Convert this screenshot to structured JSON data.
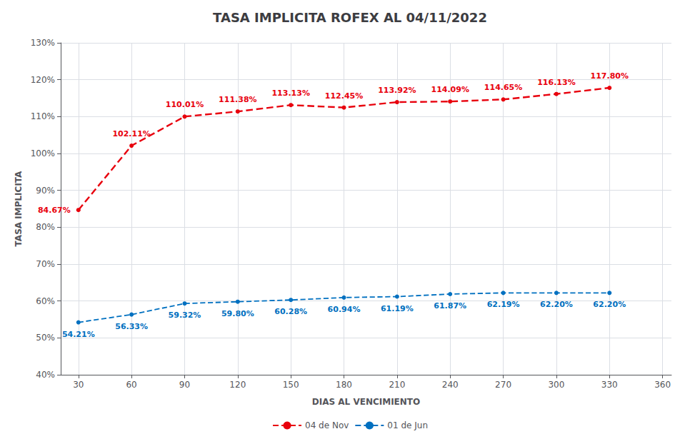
{
  "chart_data": {
    "type": "line",
    "title": "TASA IMPLICITA ROFEX AL 04/11/2022",
    "xlabel": "DIAS AL VENCIMIENTO",
    "ylabel": "TASA IMPLICITA",
    "x": [
      30,
      60,
      90,
      120,
      150,
      180,
      210,
      240,
      270,
      300,
      330
    ],
    "series": [
      {
        "name": "04 de Nov",
        "color": "#e8000d",
        "marker": "circle",
        "line_style": "dashed",
        "values": [
          84.67,
          102.11,
          110.01,
          111.38,
          113.13,
          112.45,
          113.92,
          114.09,
          114.65,
          116.13,
          117.8
        ],
        "value_labels": [
          "84.67%",
          "102.11%",
          "110.01%",
          "111.38%",
          "113.13%",
          "112.45%",
          "113.92%",
          "114.09%",
          "114.65%",
          "116.13%",
          "117.80%"
        ]
      },
      {
        "name": "01 de Jun",
        "color": "#0070c0",
        "marker": "circle",
        "line_style": "dashed",
        "values": [
          54.21,
          56.33,
          59.32,
          59.8,
          60.28,
          60.94,
          61.19,
          61.87,
          62.19,
          62.2,
          62.2
        ],
        "value_labels": [
          "54.21%",
          "56.33%",
          "59.32%",
          "59.80%",
          "60.28%",
          "60.94%",
          "61.19%",
          "61.87%",
          "62.19%",
          "62.20%",
          "62.20%"
        ]
      }
    ],
    "xlim": [
      20,
      365
    ],
    "xticks": [
      30,
      60,
      90,
      120,
      150,
      180,
      210,
      240,
      270,
      300,
      330,
      360
    ],
    "ylim": [
      40,
      130
    ],
    "yticks": [
      {
        "value": 40,
        "label": "40%"
      },
      {
        "value": 50,
        "label": "50%"
      },
      {
        "value": 60,
        "label": "60%"
      },
      {
        "value": 70,
        "label": "70%"
      },
      {
        "value": 80,
        "label": "80%"
      },
      {
        "value": 90,
        "label": "90%"
      },
      {
        "value": 100,
        "label": "100%"
      },
      {
        "value": 110,
        "label": "110%"
      },
      {
        "value": 120,
        "label": "120%"
      },
      {
        "value": 130,
        "label": "130%"
      }
    ],
    "grid": true,
    "legend": "bottom",
    "data_labels": true
  }
}
